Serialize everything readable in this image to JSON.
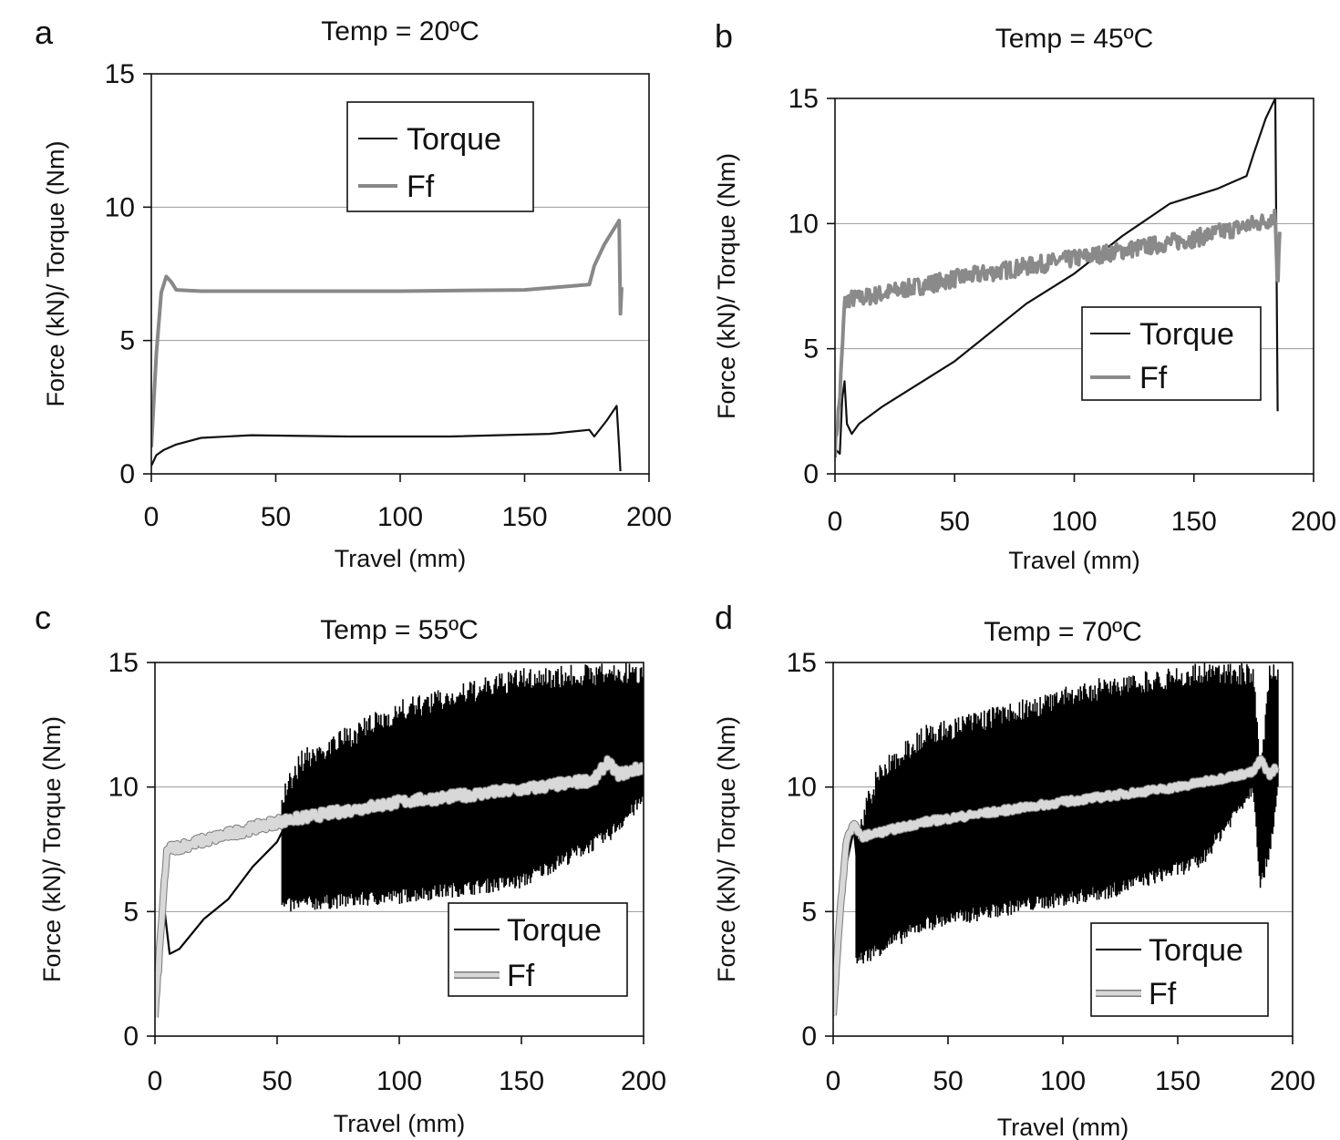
{
  "chart_data": [
    {
      "panel": "a",
      "type": "line",
      "title": "Temp = 20ºC",
      "xlabel": "Travel (mm)",
      "ylabel": "Force (kN)/ Torque (Nm)",
      "xlim": [
        0,
        200
      ],
      "ylim": [
        0,
        15
      ],
      "xticks": [
        0,
        50,
        100,
        150,
        200
      ],
      "yticks": [
        0,
        5,
        10,
        15
      ],
      "grid": "horizontal",
      "legend_position": "top-center",
      "series": [
        {
          "name": "Torque",
          "color": "#111111",
          "noise": 0,
          "x": [
            0,
            2,
            5,
            10,
            20,
            40,
            80,
            120,
            160,
            176,
            178,
            183,
            187,
            188,
            188.5
          ],
          "y": [
            0.3,
            0.7,
            0.9,
            1.1,
            1.35,
            1.45,
            1.4,
            1.4,
            1.5,
            1.65,
            1.4,
            2.0,
            2.55,
            1.0,
            0.1
          ]
        },
        {
          "name": "Ff",
          "color": "#888888",
          "noise": 0,
          "x": [
            0,
            2,
            4,
            6,
            8,
            10,
            20,
            50,
            100,
            150,
            176,
            178,
            182,
            186,
            188,
            188.5,
            189
          ],
          "y": [
            1.0,
            4.5,
            6.8,
            7.4,
            7.2,
            6.9,
            6.85,
            6.85,
            6.85,
            6.9,
            7.1,
            7.8,
            8.6,
            9.2,
            9.5,
            6.0,
            7.0
          ]
        }
      ]
    },
    {
      "panel": "b",
      "type": "line",
      "title": "Temp = 45ºC",
      "xlabel": "Travel (mm)",
      "ylabel": "Force (kN)/ Torque (Nm)",
      "xlim": [
        0,
        200
      ],
      "ylim": [
        0,
        15
      ],
      "xticks": [
        0,
        50,
        100,
        150,
        200
      ],
      "yticks": [
        0,
        5,
        10,
        15
      ],
      "grid": "horizontal",
      "legend_position": "bottom-right",
      "series": [
        {
          "name": "Torque",
          "color": "#111111",
          "noise": 0,
          "x": [
            0,
            2,
            3,
            4,
            5,
            7,
            10,
            20,
            50,
            80,
            100,
            120,
            140,
            160,
            172,
            175,
            180,
            184,
            185
          ],
          "y": [
            1.0,
            0.8,
            3.0,
            3.7,
            2.0,
            1.6,
            2.0,
            2.7,
            4.5,
            6.8,
            8.0,
            9.5,
            10.8,
            11.4,
            11.9,
            12.8,
            14.2,
            15.0,
            2.5
          ]
        },
        {
          "name": "Ff",
          "color": "#8a8a8a",
          "noise": 0.35,
          "x": [
            0,
            2,
            4,
            6,
            10,
            50,
            100,
            150,
            180,
            184,
            185,
            186
          ],
          "y": [
            1.0,
            3.0,
            6.8,
            7.0,
            7.0,
            7.8,
            8.6,
            9.4,
            10.1,
            10.3,
            7.5,
            10.3
          ]
        }
      ]
    },
    {
      "panel": "c",
      "type": "line",
      "title": "Temp = 55ºC",
      "xlabel": "Travel (mm)",
      "ylabel": "Force (kN)/ Torque (Nm)",
      "xlim": [
        0,
        200
      ],
      "ylim": [
        0,
        15
      ],
      "xticks": [
        0,
        50,
        100,
        150,
        200
      ],
      "yticks": [
        0,
        5,
        10,
        15
      ],
      "grid": "horizontal",
      "legend_position": "bottom-right",
      "series": [
        {
          "name": "Torque",
          "color": "#000000",
          "noise": 0,
          "x": [
            0,
            2,
            4,
            6,
            10,
            20,
            30,
            40,
            50,
            52
          ],
          "y": [
            0.8,
            3.0,
            5.0,
            3.3,
            3.5,
            4.7,
            5.5,
            6.8,
            7.8,
            8.2
          ],
          "band": {
            "x": [
              52,
              60,
              100,
              150,
              185,
              200
            ],
            "ymin": [
              5.2,
              5.3,
              5.6,
              6.2,
              8.0,
              9.5
            ],
            "ymax": [
              10.0,
              11.5,
              13.5,
              14.8,
              15.0,
              15.0
            ]
          }
        },
        {
          "name": "Ff",
          "color": "#d8d8d8",
          "noise": 0.2,
          "x": [
            0,
            3,
            5,
            10,
            50,
            100,
            150,
            180,
            185,
            190,
            200
          ],
          "y": [
            0.8,
            5.0,
            7.5,
            7.6,
            8.6,
            9.4,
            9.9,
            10.3,
            11.0,
            10.5,
            10.8
          ]
        }
      ]
    },
    {
      "panel": "d",
      "type": "line",
      "title": "Temp = 70ºC",
      "xlabel": "Travel (mm)",
      "ylabel": "Force (kN)/ Torque (Nm)",
      "xlim": [
        0,
        200
      ],
      "ylim": [
        0,
        15
      ],
      "xticks": [
        0,
        50,
        100,
        150,
        200
      ],
      "yticks": [
        0,
        5,
        10,
        15
      ],
      "grid": "horizontal",
      "legend_position": "bottom-right",
      "series": [
        {
          "name": "Torque",
          "color": "#000000",
          "noise": 0,
          "x": [
            0,
            3,
            6,
            9,
            12
          ],
          "y": [
            0.8,
            4.0,
            7.0,
            8.3,
            5.5
          ],
          "band": {
            "x": [
              10,
              20,
              40,
              80,
              120,
              160,
              183,
              186,
              190,
              194
            ],
            "ymin": [
              3.0,
              3.5,
              4.5,
              5.2,
              5.8,
              7.0,
              10.0,
              6.0,
              7.5,
              10.0
            ],
            "ymax": [
              8.5,
              11.0,
              12.5,
              13.5,
              14.5,
              15.0,
              15.0,
              11.0,
              15.0,
              15.0
            ]
          }
        },
        {
          "name": "Ff",
          "color": "#d8d8d8",
          "noise": 0.12,
          "x": [
            0,
            3,
            6,
            9,
            12,
            40,
            100,
            150,
            183,
            186,
            190,
            193
          ],
          "y": [
            0.8,
            5.0,
            8.0,
            8.5,
            8.0,
            8.6,
            9.4,
            10.0,
            10.6,
            11.1,
            10.5,
            10.8
          ]
        }
      ]
    }
  ]
}
